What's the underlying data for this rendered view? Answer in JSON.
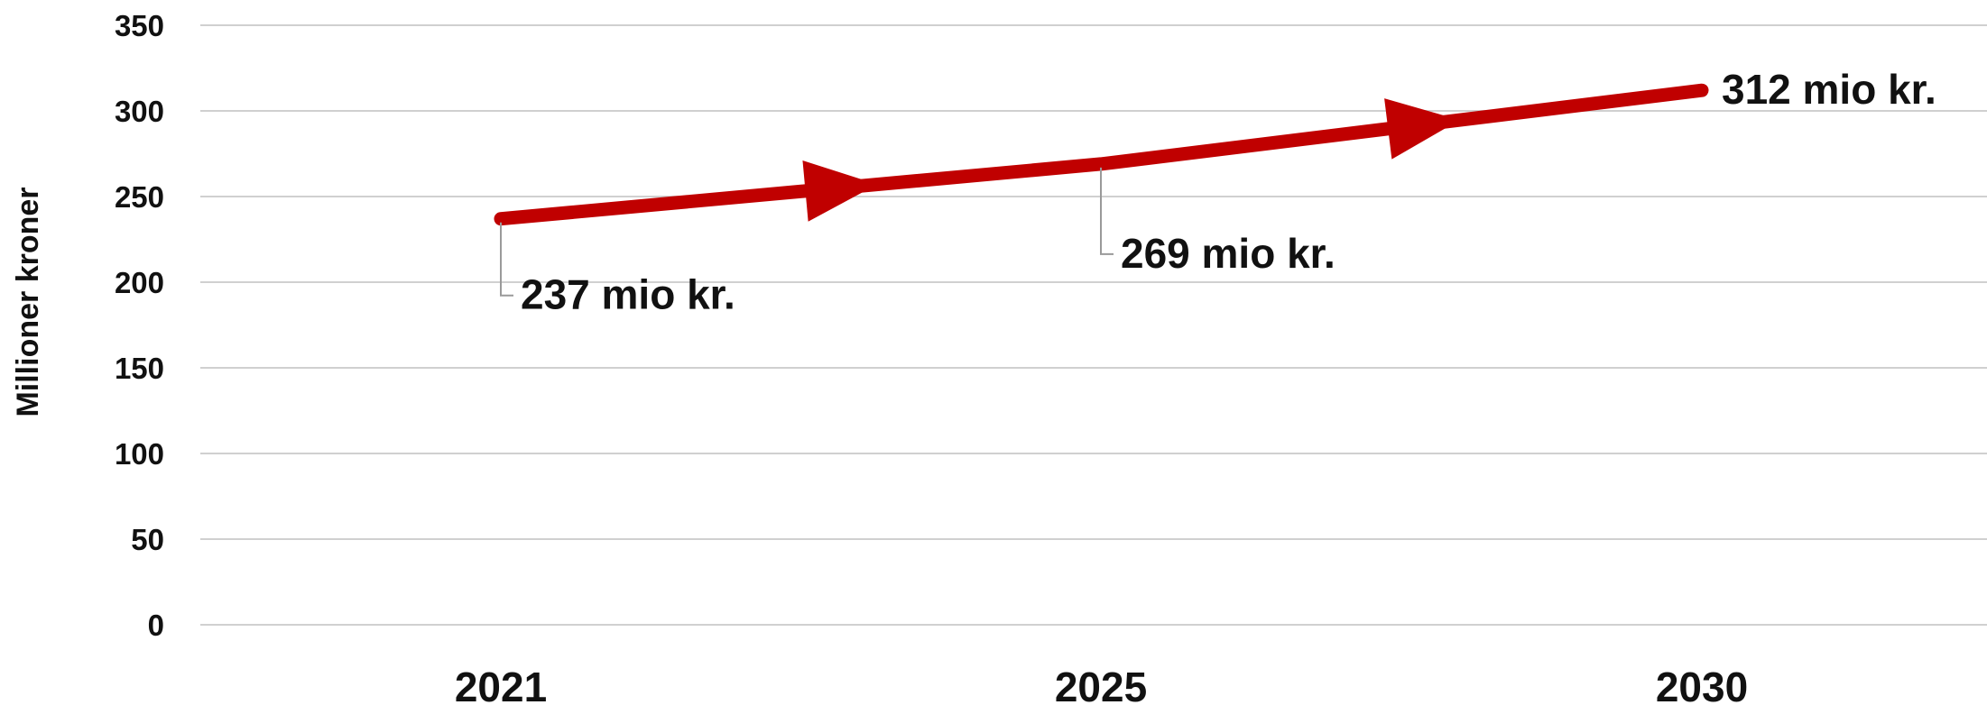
{
  "chart_data": {
    "type": "line",
    "title": "",
    "xlabel": "",
    "ylabel": "Millioner kroner",
    "ylim": [
      0,
      350
    ],
    "yticks": [
      0,
      50,
      100,
      150,
      200,
      250,
      300,
      350
    ],
    "categories": [
      "2021",
      "2025",
      "2030"
    ],
    "series": [
      {
        "values": [
          237,
          269,
          312
        ],
        "labels": [
          "237 mio kr.",
          "269 mio kr.",
          "312 mio kr."
        ],
        "color": "#c00000"
      }
    ],
    "grid": true,
    "legend": "none"
  }
}
